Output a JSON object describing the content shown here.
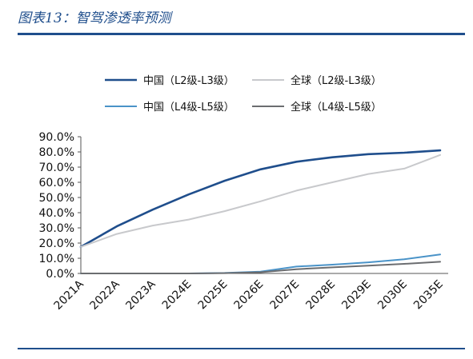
{
  "caption": "图表13：智驾渗透率预测",
  "colors": {
    "brand": "#1f4e8c",
    "china_l2_l3": "#1f4e8c",
    "global_l2_l3": "#c8c9cc",
    "china_l4_l5": "#4a93c8",
    "global_l4_l5": "#6b6d70"
  },
  "chart_data": {
    "type": "line",
    "title": "",
    "xlabel": "",
    "ylabel": "",
    "x": [
      "2021A",
      "2022A",
      "2023A",
      "2024E",
      "2025E",
      "2026E",
      "2027E",
      "2028E",
      "2029E",
      "2030E",
      "2035E"
    ],
    "ylim": [
      0,
      90
    ],
    "y_ticks": [
      "90.0%",
      "80.0%",
      "70.0%",
      "60.0%",
      "50.0%",
      "40.0%",
      "30.0%",
      "20.0%",
      "10.0%",
      "0.0%"
    ],
    "grid": false,
    "legend_position": "top",
    "series": [
      {
        "name": "中国（L2级-L3级）",
        "values": [
          17.5,
          31,
          42,
          52,
          61,
          68.5,
          73.5,
          76.5,
          78.5,
          79.5,
          81
        ]
      },
      {
        "name": "全球（L2级-L3级）",
        "values": [
          17.5,
          26,
          31.5,
          35.5,
          41,
          47.5,
          54.5,
          60,
          65.5,
          69,
          78
        ]
      },
      {
        "name": "中国（L4级-L5级）",
        "values": [
          0,
          0,
          0,
          0,
          0.3,
          1.2,
          4.5,
          5.8,
          7.3,
          9.3,
          12.5
        ]
      },
      {
        "name": "全球（L4级-L5级）",
        "values": [
          0,
          0,
          0,
          0,
          0.2,
          0.8,
          2.8,
          4.0,
          5.1,
          6.3,
          7.7
        ]
      }
    ]
  }
}
